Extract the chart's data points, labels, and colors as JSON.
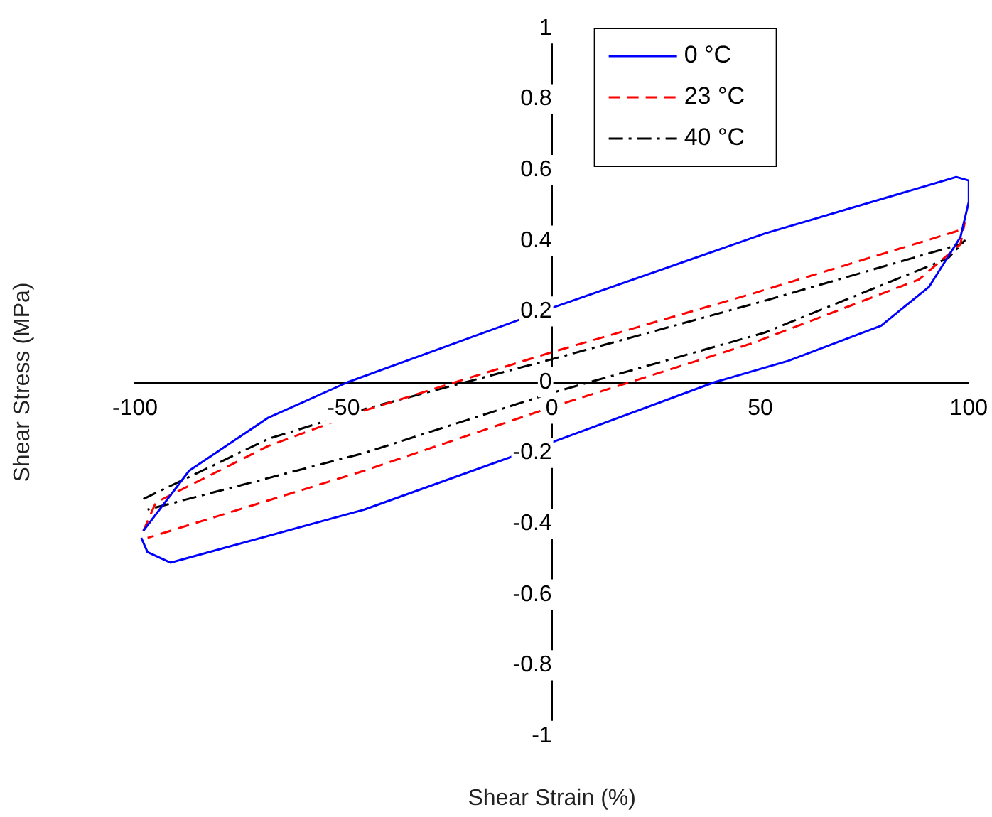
{
  "chart_data": {
    "type": "line",
    "xlabel": "Shear Strain (%)",
    "ylabel": "Shear Stress (MPa)",
    "xlim": [
      -100,
      100
    ],
    "ylim": [
      -1,
      1
    ],
    "xticks": [
      -100,
      -50,
      0,
      50,
      100
    ],
    "yticks": [
      -1,
      -0.8,
      -0.6,
      -0.4,
      -0.2,
      0,
      0.2,
      0.4,
      0.6,
      0.8,
      1
    ],
    "grid": false,
    "legend": "top",
    "marker": "none",
    "series": [
      {
        "name": "0 °C",
        "color": "#0000ff",
        "line_style": "solid",
        "x": [
          -98,
          -87,
          -68,
          -49,
          0,
          51,
          97,
          100,
          100,
          98,
          90.5,
          79,
          56.6,
          39,
          0,
          -45,
          -91.5,
          -97,
          -98.5
        ],
        "values": [
          -0.42,
          -0.25,
          -0.1,
          0,
          0.21,
          0.42,
          0.58,
          0.57,
          0.51,
          0.41,
          0.27,
          0.16,
          0.06,
          0,
          -0.17,
          -0.36,
          -0.51,
          -0.48,
          -0.44
        ]
      },
      {
        "name": "23 °C",
        "color": "#ff0000",
        "line_style": "dashed",
        "x": [
          -98,
          -95,
          -68,
          -45,
          0,
          48,
          98,
          99,
          98,
          88,
          48,
          0,
          -45,
          -97
        ],
        "values": [
          -0.42,
          -0.34,
          -0.18,
          -0.08,
          0.085,
          0.25,
          0.43,
          0.45,
          0.39,
          0.29,
          0.11,
          -0.07,
          -0.25,
          -0.44
        ]
      },
      {
        "name": "40 °C",
        "color": "#000000",
        "line_style": "dashdot",
        "x": [
          -98,
          -68,
          -45,
          0,
          51,
          98,
          99,
          95,
          51,
          0,
          -45,
          -97
        ],
        "values": [
          -0.33,
          -0.16,
          -0.076,
          0.065,
          0.23,
          0.39,
          0.4,
          0.35,
          0.14,
          -0.03,
          -0.2,
          -0.36
        ]
      }
    ]
  }
}
